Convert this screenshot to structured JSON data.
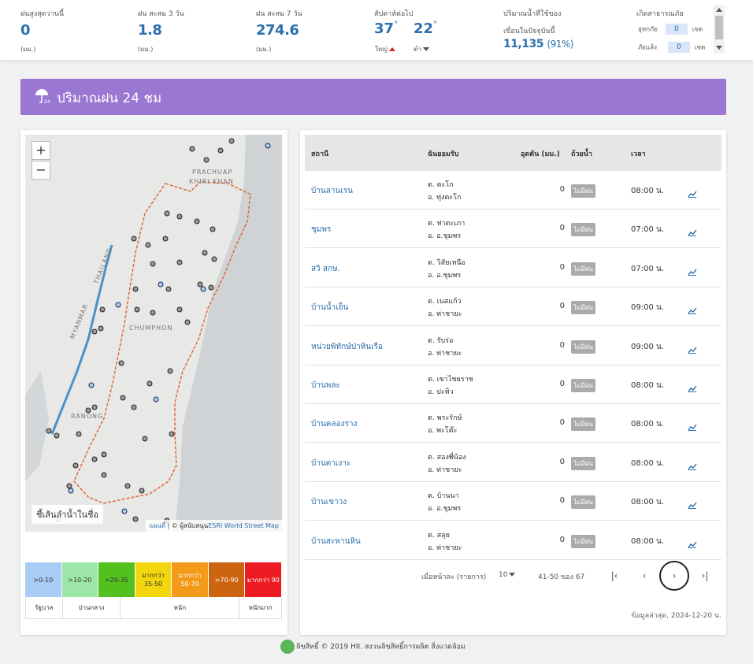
{
  "stats": {
    "max_rain": {
      "label": "ฝนสูงสุดวานนี้",
      "value": "0",
      "unit": "(มม.)"
    },
    "rain_3d": {
      "label": "ฝน สะสม 3 วัน",
      "value": "1.8",
      "unit": "(มม.)"
    },
    "rain_7d": {
      "label": "ฝน สะสม 7 วัน",
      "value": "274.6",
      "unit": "(มม.)"
    },
    "temp": {
      "label": "สัปดาห์ต่อไป",
      "high": "37",
      "low": "22",
      "high_label": "ใหญ่",
      "low_label": "ต่ำ",
      "degree": "°"
    },
    "dam": {
      "label1": "ปริมาณน้ำที่ใช้ของ",
      "label2": "เขื่อนในปัจจุบันนี้",
      "value": "11,135",
      "pct": "(91%)"
    },
    "disaster": {
      "label": "เกิดสาธารณภัย",
      "flood_label": "อุทกภัย",
      "flood_value": "0",
      "drought_label": "ภัยแล้ง",
      "drought_value": "0",
      "unit": "เขต"
    }
  },
  "banner": {
    "title": "ปริมาณฝน 24 ชม"
  },
  "map": {
    "zoom_in": "+",
    "zoom_out": "−",
    "river_button": "ชี้เส้นลำน้ำในชื่อ",
    "attrib_map": "แผนที่",
    "attrib_sep": " | © ผู้สนับสนุน",
    "attrib_esri": "ESRI World Street Map",
    "labels": [
      "PRACHUAP",
      "KHIRI KHAN",
      "CHUMPHON",
      "RANONG",
      "MYANMAR",
      "THAILAND"
    ]
  },
  "legend": {
    "ranges": [
      {
        "label": ">0-10",
        "color": "#a7ccf5"
      },
      {
        "label": ">10-20",
        "color": "#9ce7a7"
      },
      {
        "label": ">20-35",
        "color": "#52c11f"
      },
      {
        "label": "มากกว่า 35-50",
        "color": "#f4d60e"
      },
      {
        "label": "มากกว่า 50-70",
        "color": "#f39a1a"
      },
      {
        "label": ">70-90",
        "color": "#cd6410"
      },
      {
        "label": "มากกว่า 90",
        "color": "#ed1c24"
      }
    ],
    "categories": [
      "รัฐบาล",
      "ปานกลาง",
      "หนัก",
      "หนักมาก"
    ]
  },
  "table": {
    "headers": {
      "station": "สถานี",
      "location": "ฉันยอมรับ",
      "rain": "อุดตัน (มม.)",
      "status": "ถ้วยน้ำ",
      "time": "เวลา"
    },
    "rows": [
      {
        "station": "บ้านลานเรน",
        "tambon": "ต. ตะโก",
        "amphoe": "อ. ทุ่งตะโก",
        "rain": "0",
        "status": "ไม่มีฝน",
        "time": "08:00 น."
      },
      {
        "station": "ชุมพร",
        "tambon": "ต. ท่าตะเภา",
        "amphoe": "อ. อ.ชุมพร",
        "rain": "0",
        "status": "ไม่มีฝน",
        "time": "07:00 น."
      },
      {
        "station": "สวิ สกษ.",
        "tambon": "ต. วิสัยเหนือ",
        "amphoe": "อ. อ.ชุมพร",
        "rain": "0",
        "status": "ไม่มีฝน",
        "time": "07:00 น."
      },
      {
        "station": "บ้านน้ำเย็น",
        "tambon": "ต. เนสแก้ว",
        "amphoe": "อ. ท่าชายะ",
        "rain": "0",
        "status": "ไม่มีฝน",
        "time": "09:00 น."
      },
      {
        "station": "หน่วยพิทักษ์ป่าหินเรือ",
        "tambon": "ต. รับร่อ",
        "amphoe": "อ. ท่าชายะ",
        "rain": "0",
        "status": "ไม่มีฝน",
        "time": "09:00 น."
      },
      {
        "station": "บ้านพละ",
        "tambon": "ต. เขาไชยราช",
        "amphoe": "อ. ปะทิว",
        "rain": "0",
        "status": "ไม่มีฝน",
        "time": "08:00 น."
      },
      {
        "station": "บ้านคลองราง",
        "tambon": "ต. พระรักษ์",
        "amphoe": "อ. พะโต๊ะ",
        "rain": "0",
        "status": "ไม่มีฝน",
        "time": "08:00 น."
      },
      {
        "station": "บ้านตาเงาะ",
        "tambon": "ต. สองพี่น้อง",
        "amphoe": "อ. ท่าชายะ",
        "rain": "0",
        "status": "ไม่มีฝน",
        "time": "08:00 น."
      },
      {
        "station": "บ้านเขาวง",
        "tambon": "ต. บ้านนา",
        "amphoe": "อ. อ.ชุมพร",
        "rain": "0",
        "status": "ไม่มีฝน",
        "time": "08:00 น."
      },
      {
        "station": "บ้านสะพานหิน",
        "tambon": "ต. สลุย",
        "amphoe": "อ. ท่าชายะ",
        "rain": "0",
        "status": "ไม่มีฝน",
        "time": "08:00 น."
      }
    ]
  },
  "pagination": {
    "per_page_label": "เมื่อหน้าละ (รายการ)",
    "per_page": "10",
    "range": "41-50 ของ 67",
    "first": "|‹",
    "prev": "‹",
    "next": "›",
    "last": "›|"
  },
  "updated": "ข้อมูลล่าสุด, 2024-12-20 น.",
  "footer": {
    "text": "ลิขสิทธิ์ © 2019 HII. สงวนลิขสิทธิ์การผลิต สิ่งแวดล้อม"
  }
}
